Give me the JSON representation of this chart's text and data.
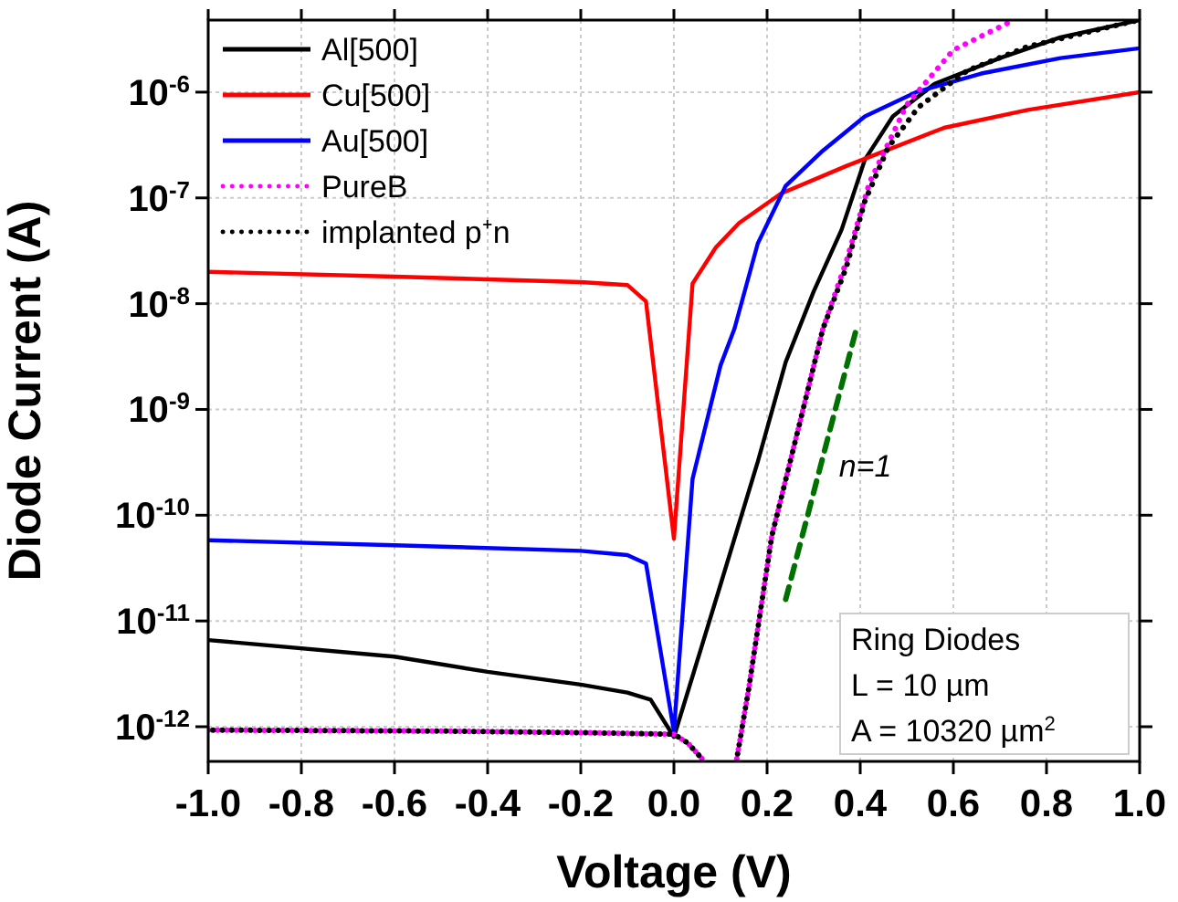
{
  "chart_data": {
    "type": "line",
    "xlabel": "Voltage (V)",
    "ylabel": "Diode Current (A)",
    "log": "y",
    "grid": true,
    "legend": "top left",
    "xlim": [
      -1.0,
      1.0
    ],
    "ylim": [
      4.7e-13,
      4.8e-06
    ],
    "xticks": [
      {
        "value": -1.0,
        "label": "-1.0"
      },
      {
        "value": -0.8,
        "label": "-0.8"
      },
      {
        "value": -0.6,
        "label": "-0.6"
      },
      {
        "value": -0.4,
        "label": "-0.4"
      },
      {
        "value": -0.2,
        "label": "-0.2"
      },
      {
        "value": 0,
        "label": "0.0"
      },
      {
        "value": 0.2,
        "label": "0.2"
      },
      {
        "value": 0.4,
        "label": "0.4"
      },
      {
        "value": 0.6,
        "label": "0.6"
      },
      {
        "value": 0.8,
        "label": "0.8"
      },
      {
        "value": 1.0,
        "label": "1.0"
      }
    ],
    "yticks": [
      {
        "value": 1e-12,
        "label": "10$^{-12}$"
      },
      {
        "value": 1e-11,
        "label": "10$^{-11}$"
      },
      {
        "value": 1e-10,
        "label": "10$^{-10}$"
      },
      {
        "value": 1e-09,
        "label": "10$^{-9}$"
      },
      {
        "value": 1e-08,
        "label": "10$^{-8}$"
      },
      {
        "value": 1e-07,
        "label": "10$^{-7}$"
      },
      {
        "value": 1e-06,
        "label": "10$^{-6}$"
      }
    ],
    "series": [
      {
        "name": "Al[500]",
        "color": "#000000",
        "line_style": "solid",
        "x": [
          -1,
          -0.6,
          -0.4,
          -0.2,
          -0.1,
          -0.05,
          0,
          0.04,
          0.1,
          0.18,
          0.24,
          0.3,
          0.36,
          0.41,
          0.47,
          0.56,
          0.7,
          0.83,
          1.0
        ],
        "values": [
          6.6e-12,
          4.6e-12,
          3.3e-12,
          2.5e-12,
          2.1e-12,
          1.8e-12,
          8e-13,
          3e-12,
          2.2e-11,
          3.2e-10,
          2.8e-09,
          1.3e-08,
          5e-08,
          2.3e-07,
          5.9e-07,
          1.2e-06,
          2.1e-06,
          3.3e-06,
          4.8e-06
        ]
      },
      {
        "name": "Cu[500]",
        "color": "#ff0000",
        "line_style": "solid",
        "x": [
          -1,
          -0.6,
          -0.2,
          -0.1,
          -0.06,
          0,
          0.04,
          0.09,
          0.14,
          0.23,
          0.37,
          0.58,
          0.76,
          1.0
        ],
        "values": [
          2e-08,
          1.8e-08,
          1.6e-08,
          1.5e-08,
          1.05e-08,
          6e-11,
          1.55e-08,
          3.4e-08,
          5.8e-08,
          1.1e-07,
          2e-07,
          4.6e-07,
          6.8e-07,
          1e-06
        ]
      },
      {
        "name": "Au[500]",
        "color": "#0000ff",
        "line_style": "solid",
        "x": [
          -1,
          -0.6,
          -0.2,
          -0.1,
          -0.06,
          0,
          0.04,
          0.1,
          0.13,
          0.18,
          0.24,
          0.32,
          0.41,
          0.52,
          0.66,
          0.83,
          1.0
        ],
        "values": [
          5.8e-11,
          5.2e-11,
          4.6e-11,
          4.2e-11,
          3.5e-11,
          9e-13,
          2.2e-10,
          2.6e-09,
          5.8e-09,
          3.7e-08,
          1.3e-07,
          2.8e-07,
          5.9e-07,
          1e-06,
          1.5e-06,
          2.1e-06,
          2.6e-06
        ]
      },
      {
        "name": "PureB",
        "color": "#ff00ff",
        "line_style": "dotted",
        "x": [
          -1,
          -0.5,
          -0.2,
          0,
          0.03,
          0.06,
          0.1,
          0.135,
          0.16,
          0.21,
          0.26,
          0.32,
          0.37,
          0.42,
          0.5,
          0.6,
          0.73
        ],
        "values": [
          9.3e-13,
          9.1e-13,
          8.8e-13,
          8.5e-13,
          7e-13,
          5e-13,
          null,
          5e-13,
          2.2e-12,
          6.3e-11,
          4.9e-10,
          5.8e-09,
          2.5e-08,
          1.4e-07,
          7.6e-07,
          2.5e-06,
          4.8e-06
        ]
      },
      {
        "name": "implanted p⁺n",
        "color": "#000000",
        "line_style": "dotted",
        "x": [
          -1,
          -0.5,
          -0.2,
          0,
          0.03,
          0.06,
          0.1,
          0.135,
          0.16,
          0.21,
          0.26,
          0.32,
          0.37,
          0.41,
          0.46,
          0.525,
          0.63,
          0.76,
          0.98,
          1.0
        ],
        "values": [
          9.3e-13,
          9.1e-13,
          8.8e-13,
          8.5e-13,
          7e-13,
          5e-13,
          null,
          5e-13,
          2.2e-12,
          6.3e-11,
          4.9e-10,
          5.8e-09,
          2.2e-08,
          9.3e-08,
          3e-07,
          7.2e-07,
          1.6e-06,
          2.7e-06,
          4.6e-06,
          4.8e-06
        ]
      },
      {
        "color": "#007000",
        "line_style": "dashed",
        "x": [
          0.24,
          0.39
        ],
        "values": [
          1.6e-11,
          5.4e-09
        ]
      }
    ],
    "annotations": [
      "n=1",
      "Ring Diodes",
      "L = 10 µm",
      "A = 10320 µm$^{2}$"
    ]
  }
}
